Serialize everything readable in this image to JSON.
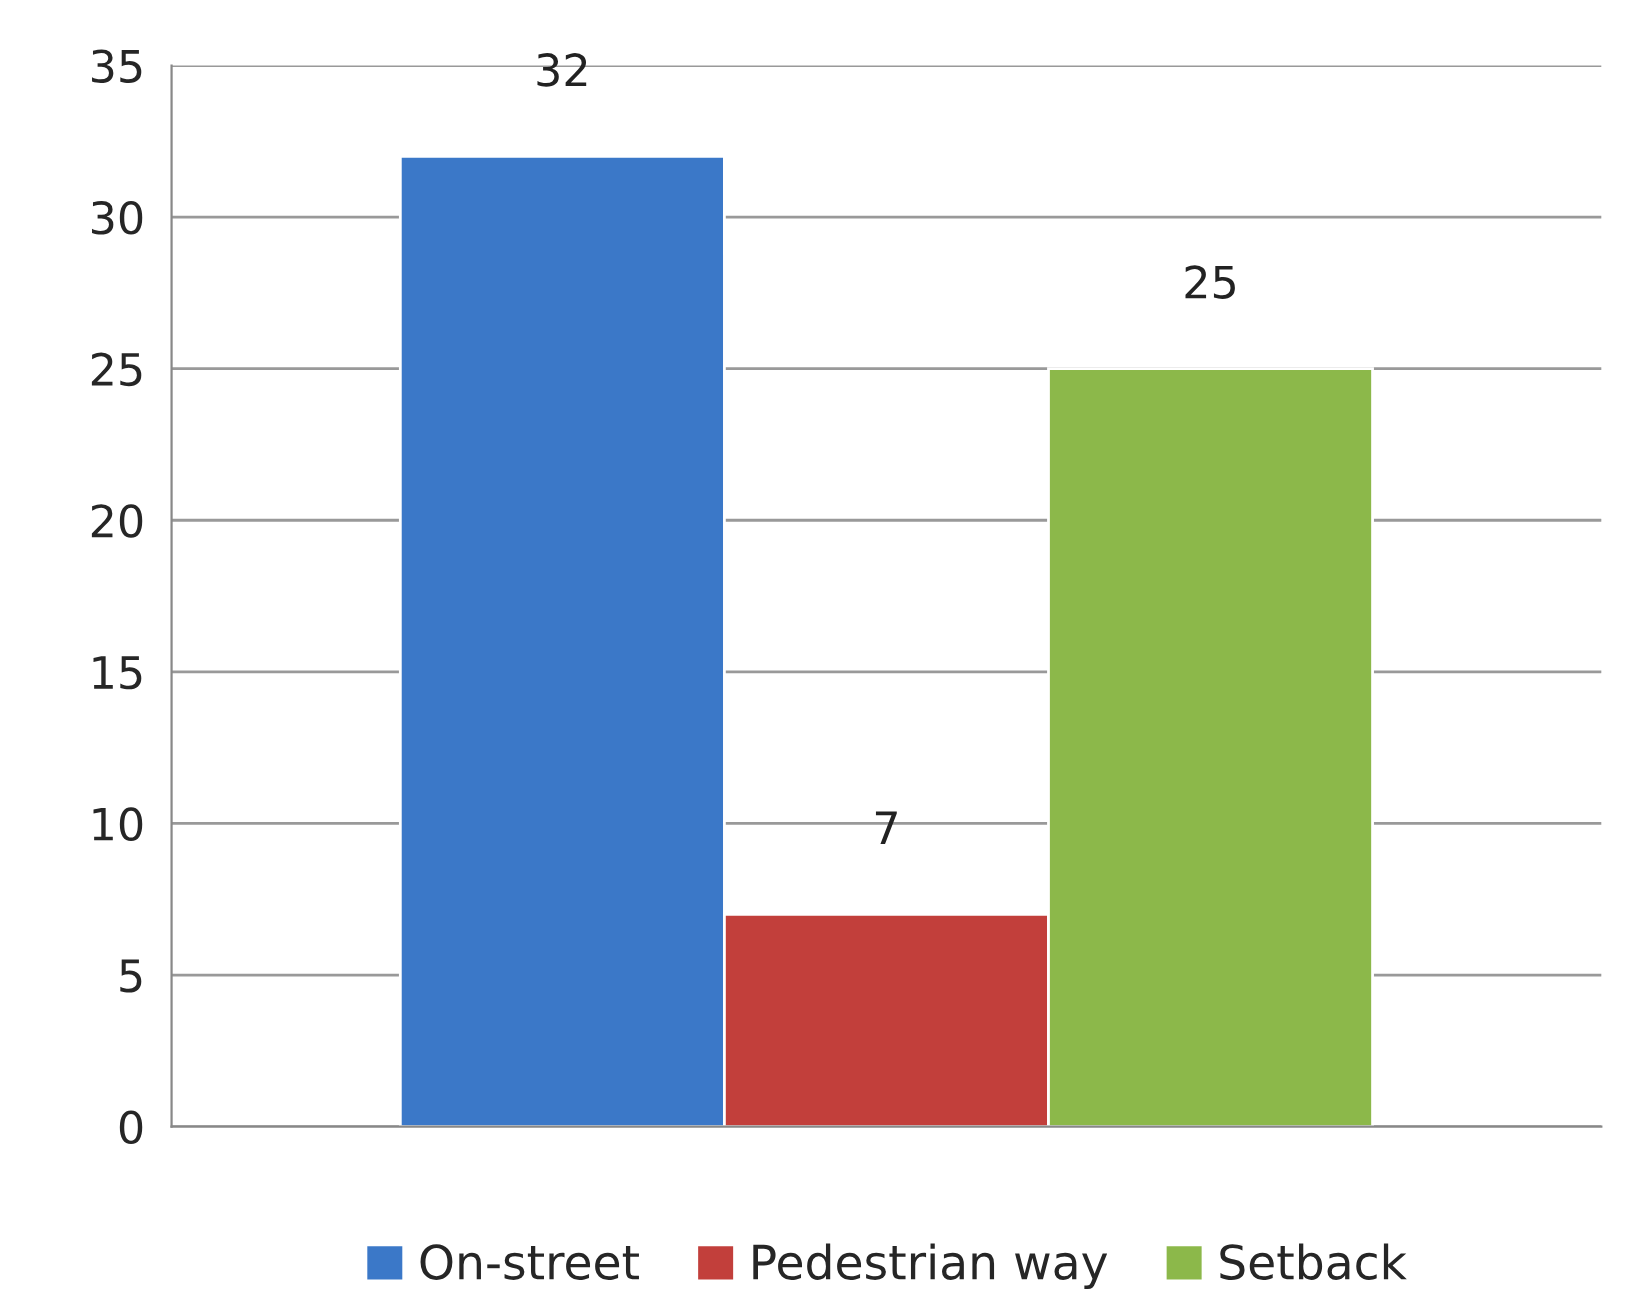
{
  "chart_data": {
    "type": "bar",
    "categories": [
      null
    ],
    "series": [
      {
        "name": "On-street",
        "color": "#3b78c8",
        "values": [
          32
        ]
      },
      {
        "name": "Pedestrian way",
        "color": "#c23f3b",
        "values": [
          7
        ]
      },
      {
        "name": "Setback",
        "color": "#8cb84a",
        "values": [
          25
        ]
      }
    ],
    "ylim": [
      0,
      35
    ],
    "yticks": [
      0,
      5,
      10,
      15,
      20,
      25,
      30,
      35
    ],
    "grid": "y",
    "legend": "bottom",
    "data_labels": true
  }
}
